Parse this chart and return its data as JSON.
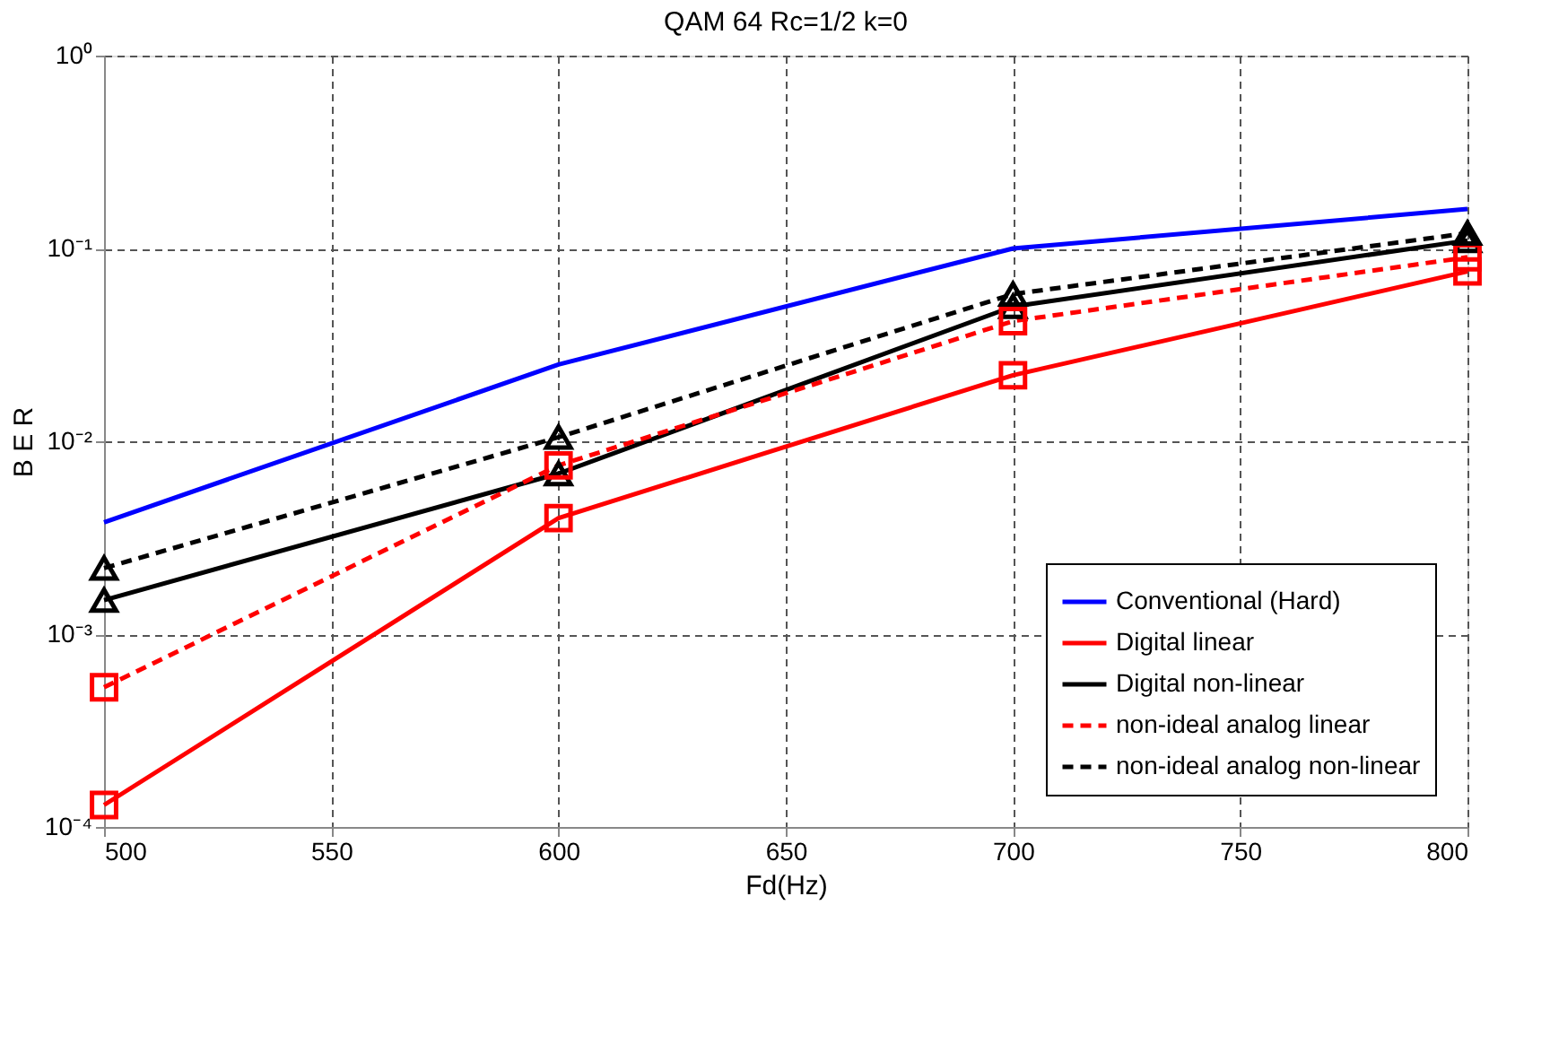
{
  "chart_data": {
    "type": "line",
    "title": "QAM 64 Rc=1/2 k=0",
    "xlabel": "Fd(Hz)",
    "ylabel": "B E R",
    "x": [
      500,
      600,
      700,
      800
    ],
    "series": [
      {
        "name": "Conventional (Hard)",
        "color": "#0000ff",
        "values": [
          0.0038,
          0.025,
          0.1,
          0.16
        ],
        "marker": "none",
        "line_style": "solid"
      },
      {
        "name": "Digital linear",
        "color": "#ff0000",
        "values": [
          0.00013,
          0.004,
          0.022,
          0.076
        ],
        "marker": "square",
        "line_style": "solid"
      },
      {
        "name": "Digital non-linear",
        "color": "#000000",
        "values": [
          0.0015,
          0.0068,
          0.05,
          0.11
        ],
        "marker": "triangle",
        "line_style": "solid"
      },
      {
        "name": "non-ideal analog linear",
        "color": "#ff0000",
        "values": [
          0.00053,
          0.0075,
          0.042,
          0.09
        ],
        "marker": "square",
        "line_style": "dashed"
      },
      {
        "name": "non-ideal analog non-linear",
        "color": "#000000",
        "values": [
          0.0022,
          0.0105,
          0.058,
          0.12
        ],
        "marker": "triangle",
        "line_style": "dashed"
      }
    ],
    "xlim": [
      500,
      800
    ],
    "xticks": [
      500,
      550,
      600,
      650,
      700,
      750,
      800
    ],
    "ylim": [
      0.0001,
      1
    ],
    "yticks": [
      {
        "value": 0.0001,
        "label": "10⁻⁴"
      },
      {
        "value": 0.001,
        "label": "10⁻³"
      },
      {
        "value": 0.01,
        "label": "10⁻²"
      },
      {
        "value": 0.1,
        "label": "10⁻¹"
      },
      {
        "value": 1,
        "label": "10⁰"
      }
    ],
    "log": "y",
    "grid": true,
    "legend": "bottom right"
  }
}
